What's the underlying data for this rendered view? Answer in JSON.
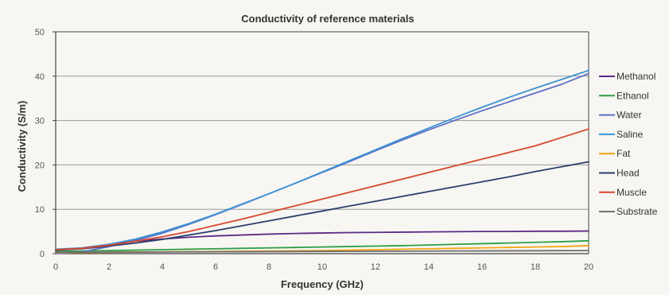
{
  "chart_data": {
    "type": "line",
    "title": "Conductivity of reference materials",
    "xlabel": "Frequency (GHz)",
    "ylabel": "Conductivity (S/m)",
    "xlim": [
      0,
      20
    ],
    "ylim": [
      0,
      50
    ],
    "xticks": [
      0,
      2,
      4,
      6,
      8,
      10,
      12,
      14,
      16,
      18,
      20
    ],
    "yticks": [
      0,
      10,
      20,
      30,
      40,
      50
    ],
    "grid": "horizontal",
    "legend_position": "right",
    "x": [
      0,
      1,
      2,
      3,
      4,
      5,
      6,
      7,
      8,
      9,
      10,
      11,
      12,
      13,
      14,
      15,
      16,
      17,
      18,
      19,
      20
    ],
    "series": [
      {
        "name": "Methanol",
        "color": "#5b2a86",
        "values": [
          0.8,
          1.3,
          2.1,
          2.8,
          3.3,
          3.7,
          4.0,
          4.2,
          4.4,
          4.55,
          4.65,
          4.75,
          4.8,
          4.85,
          4.9,
          4.95,
          5.0,
          5.0,
          5.05,
          5.05,
          5.1
        ]
      },
      {
        "name": "Ethanol",
        "color": "#2e9e44",
        "values": [
          0.5,
          0.6,
          0.7,
          0.8,
          0.9,
          1.0,
          1.1,
          1.2,
          1.3,
          1.4,
          1.5,
          1.6,
          1.7,
          1.8,
          1.95,
          2.1,
          2.25,
          2.4,
          2.55,
          2.7,
          2.9
        ]
      },
      {
        "name": "Water",
        "color": "#5b6fc6",
        "values": [
          0.0,
          0.4,
          1.6,
          3.0,
          4.6,
          6.6,
          8.8,
          11.1,
          13.5,
          15.9,
          18.3,
          20.7,
          23.2,
          25.6,
          27.9,
          30.1,
          32.2,
          34.2,
          36.2,
          38.2,
          40.6
        ]
      },
      {
        "name": "Saline",
        "color": "#3a93d6",
        "values": [
          1.0,
          1.3,
          2.1,
          3.3,
          4.9,
          6.8,
          8.9,
          11.2,
          13.5,
          15.9,
          18.4,
          20.9,
          23.4,
          25.9,
          28.3,
          30.7,
          33.0,
          35.2,
          37.3,
          39.3,
          41.3
        ]
      },
      {
        "name": "Fat",
        "color": "#f2a614",
        "values": [
          0.2,
          0.25,
          0.3,
          0.35,
          0.4,
          0.45,
          0.5,
          0.55,
          0.6,
          0.65,
          0.7,
          0.8,
          0.9,
          1.0,
          1.1,
          1.2,
          1.3,
          1.4,
          1.5,
          1.6,
          1.8
        ]
      },
      {
        "name": "Head",
        "color": "#2d3f6e",
        "values": [
          0.8,
          1.1,
          1.7,
          2.4,
          3.2,
          4.2,
          5.2,
          6.3,
          7.4,
          8.5,
          9.6,
          10.7,
          11.8,
          12.9,
          14.0,
          15.1,
          16.2,
          17.3,
          18.5,
          19.6,
          20.7
        ]
      },
      {
        "name": "Muscle",
        "color": "#d8472f",
        "values": [
          0.9,
          1.2,
          1.9,
          2.8,
          3.8,
          5.0,
          6.4,
          7.8,
          9.3,
          10.8,
          12.3,
          13.8,
          15.3,
          16.8,
          18.3,
          19.8,
          21.3,
          22.8,
          24.3,
          26.2,
          28.1
        ]
      },
      {
        "name": "Substrate",
        "color": "#6e6e6e",
        "values": [
          0.3,
          0.32,
          0.34,
          0.36,
          0.38,
          0.4,
          0.42,
          0.44,
          0.46,
          0.48,
          0.5,
          0.52,
          0.54,
          0.56,
          0.58,
          0.6,
          0.62,
          0.64,
          0.66,
          0.68,
          0.7
        ]
      }
    ]
  }
}
